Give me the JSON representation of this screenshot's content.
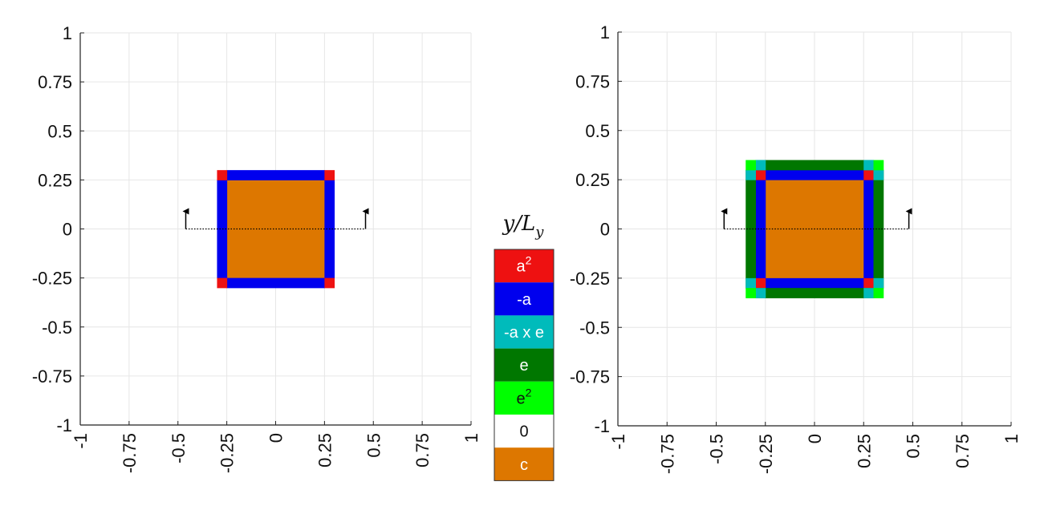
{
  "chart_data": [
    {
      "type": "heatmap",
      "title": "",
      "xlabel": "",
      "ylabel": "",
      "xlim": [
        -1,
        1
      ],
      "ylim": [
        -1,
        1
      ],
      "grid": true,
      "xticks": [
        "-1",
        "-0.75",
        "-0.5",
        "-0.25",
        "0",
        "0.25",
        "0.5",
        "0.75",
        "1"
      ],
      "yticks": [
        "1",
        "0.75",
        "0.5",
        "0.25",
        "0",
        "-0.25",
        "-0.5",
        "-0.75",
        "-1"
      ],
      "regions": [
        {
          "category": "c",
          "x": [
            -0.25,
            0.25
          ],
          "y": [
            -0.25,
            0.25
          ]
        },
        {
          "category": "-a",
          "x": [
            -0.25,
            0.25
          ],
          "y": [
            0.25,
            0.3
          ]
        },
        {
          "category": "-a",
          "x": [
            -0.25,
            0.25
          ],
          "y": [
            -0.3,
            -0.25
          ]
        },
        {
          "category": "-a",
          "x": [
            -0.3,
            -0.25
          ],
          "y": [
            -0.25,
            0.25
          ]
        },
        {
          "category": "-a",
          "x": [
            0.25,
            0.3
          ],
          "y": [
            -0.25,
            0.25
          ]
        },
        {
          "category": "a^2",
          "x": [
            -0.3,
            -0.25
          ],
          "y": [
            0.25,
            0.3
          ]
        },
        {
          "category": "a^2",
          "x": [
            0.25,
            0.3
          ],
          "y": [
            0.25,
            0.3
          ]
        },
        {
          "category": "a^2",
          "x": [
            -0.3,
            -0.25
          ],
          "y": [
            -0.3,
            -0.25
          ]
        },
        {
          "category": "a^2",
          "x": [
            0.25,
            0.3
          ],
          "y": [
            -0.3,
            -0.25
          ]
        }
      ],
      "arrows": [
        {
          "x": -0.46,
          "y": 0,
          "direction": "up"
        },
        {
          "x": 0.46,
          "y": 0,
          "direction": "up"
        }
      ]
    },
    {
      "type": "heatmap",
      "title": "",
      "xlabel": "",
      "ylabel": "",
      "xlim": [
        -1,
        1
      ],
      "ylim": [
        -1,
        1
      ],
      "grid": true,
      "xticks": [
        "-1",
        "-0.75",
        "-0.5",
        "-0.25",
        "0",
        "0.25",
        "0.5",
        "0.75",
        "1"
      ],
      "yticks": [
        "1",
        "0.75",
        "0.5",
        "0.25",
        "0",
        "-0.25",
        "-0.5",
        "-0.75",
        "-1"
      ],
      "regions": [
        {
          "category": "c",
          "x": [
            -0.25,
            0.25
          ],
          "y": [
            -0.25,
            0.25
          ]
        },
        {
          "category": "-a",
          "x": [
            -0.25,
            0.25
          ],
          "y": [
            0.25,
            0.3
          ]
        },
        {
          "category": "-a",
          "x": [
            -0.25,
            0.25
          ],
          "y": [
            -0.3,
            -0.25
          ]
        },
        {
          "category": "-a",
          "x": [
            -0.3,
            -0.25
          ],
          "y": [
            -0.25,
            0.25
          ]
        },
        {
          "category": "-a",
          "x": [
            0.25,
            0.3
          ],
          "y": [
            -0.25,
            0.25
          ]
        },
        {
          "category": "a^2",
          "x": [
            -0.3,
            -0.25
          ],
          "y": [
            0.25,
            0.3
          ]
        },
        {
          "category": "a^2",
          "x": [
            0.25,
            0.3
          ],
          "y": [
            0.25,
            0.3
          ]
        },
        {
          "category": "a^2",
          "x": [
            -0.3,
            -0.25
          ],
          "y": [
            -0.3,
            -0.25
          ]
        },
        {
          "category": "a^2",
          "x": [
            0.25,
            0.3
          ],
          "y": [
            -0.3,
            -0.25
          ]
        },
        {
          "category": "e",
          "x": [
            -0.3,
            0.3
          ],
          "y": [
            0.3,
            0.35
          ]
        },
        {
          "category": "e",
          "x": [
            -0.3,
            0.3
          ],
          "y": [
            -0.35,
            -0.3
          ]
        },
        {
          "category": "e",
          "x": [
            -0.35,
            -0.3
          ],
          "y": [
            -0.3,
            0.3
          ]
        },
        {
          "category": "e",
          "x": [
            0.3,
            0.35
          ],
          "y": [
            -0.3,
            0.3
          ]
        },
        {
          "category": "-a x e",
          "x": [
            -0.3,
            -0.25
          ],
          "y": [
            0.3,
            0.35
          ]
        },
        {
          "category": "-a x e",
          "x": [
            0.25,
            0.3
          ],
          "y": [
            0.3,
            0.35
          ]
        },
        {
          "category": "-a x e",
          "x": [
            -0.3,
            -0.25
          ],
          "y": [
            -0.35,
            -0.3
          ]
        },
        {
          "category": "-a x e",
          "x": [
            0.25,
            0.3
          ],
          "y": [
            -0.35,
            -0.3
          ]
        },
        {
          "category": "-a x e",
          "x": [
            -0.35,
            -0.3
          ],
          "y": [
            0.25,
            0.3
          ]
        },
        {
          "category": "-a x e",
          "x": [
            0.3,
            0.35
          ],
          "y": [
            0.25,
            0.3
          ]
        },
        {
          "category": "-a x e",
          "x": [
            -0.35,
            -0.3
          ],
          "y": [
            -0.3,
            -0.25
          ]
        },
        {
          "category": "-a x e",
          "x": [
            0.3,
            0.35
          ],
          "y": [
            -0.3,
            -0.25
          ]
        },
        {
          "category": "e^2",
          "x": [
            -0.35,
            -0.3
          ],
          "y": [
            0.3,
            0.35
          ]
        },
        {
          "category": "e^2",
          "x": [
            0.3,
            0.35
          ],
          "y": [
            0.3,
            0.35
          ]
        },
        {
          "category": "e^2",
          "x": [
            -0.35,
            -0.3
          ],
          "y": [
            -0.35,
            -0.3
          ]
        },
        {
          "category": "e^2",
          "x": [
            0.3,
            0.35
          ],
          "y": [
            -0.35,
            -0.3
          ]
        }
      ],
      "arrows": [
        {
          "x": -0.46,
          "y": 0,
          "direction": "up"
        },
        {
          "x": 0.48,
          "y": 0,
          "direction": "up"
        }
      ]
    }
  ],
  "colorbar": {
    "title": "y/L",
    "title_subscript": "y",
    "entries": [
      {
        "key": "a^2",
        "base": "a",
        "sup": "2",
        "color": "#ee1111",
        "text_color": "#ffffff"
      },
      {
        "key": "-a",
        "base": "-a",
        "sup": "",
        "color": "#0000ee",
        "text_color": "#ffffff"
      },
      {
        "key": "-a x e",
        "base": "-a x e",
        "sup": "",
        "color": "#00bbbb",
        "text_color": "#ffffff"
      },
      {
        "key": "e",
        "base": "e",
        "sup": "",
        "color": "#007700",
        "text_color": "#ffffff"
      },
      {
        "key": "e^2",
        "base": "e",
        "sup": "2",
        "color": "#00ff00",
        "text_color": "#111111"
      },
      {
        "key": "0",
        "base": "0",
        "sup": "",
        "color": "#ffffff",
        "text_color": "#111111"
      },
      {
        "key": "c",
        "base": "c",
        "sup": "",
        "color": "#dd7700",
        "text_color": "#ffffff"
      }
    ]
  }
}
